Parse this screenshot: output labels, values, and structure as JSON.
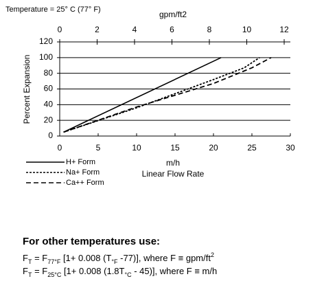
{
  "chart_data": {
    "type": "line",
    "note": "Temperature = 25° C (77° F)",
    "x2_label": "gpm/ft2",
    "x_label": "m/h",
    "x_label_2": "Linear Flow Rate",
    "y_label": "Percent Expansion",
    "xlim": [
      0,
      30
    ],
    "xticks": [
      0,
      5,
      10,
      15,
      20,
      25,
      30
    ],
    "x2lim": [
      0,
      12
    ],
    "x2ticks": [
      0,
      2,
      4,
      6,
      8,
      10,
      12
    ],
    "ylim": [
      0,
      120
    ],
    "yticks": [
      0,
      20,
      40,
      60,
      80,
      100,
      120
    ],
    "grid": true,
    "series": [
      {
        "name": "H+ Form",
        "color": "#000000",
        "dash": "solid",
        "x": [
          0.5,
          21
        ],
        "values": [
          5,
          100
        ]
      },
      {
        "name": "Na+ Form",
        "color": "#000000",
        "dash": "dotted",
        "x": [
          0.5,
          10,
          20,
          24,
          26
        ],
        "values": [
          5,
          36,
          72,
          87,
          100
        ]
      },
      {
        "name": "Ca++ Form",
        "color": "#000000",
        "dash": "dashed",
        "x": [
          0.5,
          10,
          20,
          25,
          27.5
        ],
        "values": [
          5,
          37,
          67,
          87,
          100
        ]
      }
    ]
  },
  "notes": {
    "heading": "For other temperatures use:",
    "formulas": [
      [
        {
          "text": "F",
          "style": "normal"
        },
        {
          "text": "T",
          "style": "sub"
        },
        {
          "text": " = F",
          "style": "normal"
        },
        {
          "text": "77°F",
          "style": "sub"
        },
        {
          "text": " [1+ 0.008 (T",
          "style": "normal"
        },
        {
          "text": "°F",
          "style": "sub"
        },
        {
          "text": " -77)], where F ≡ gpm/ft",
          "style": "normal"
        },
        {
          "text": "2",
          "style": "sup"
        }
      ],
      [
        {
          "text": "F",
          "style": "normal"
        },
        {
          "text": "T",
          "style": "sub"
        },
        {
          "text": " = F",
          "style": "normal"
        },
        {
          "text": "25°C",
          "style": "sub"
        },
        {
          "text": " [1+ 0.008 (1.8T",
          "style": "normal"
        },
        {
          "text": "°C",
          "style": "sub"
        },
        {
          "text": " - 45)], where F ≡ m/h",
          "style": "normal"
        }
      ]
    ]
  }
}
